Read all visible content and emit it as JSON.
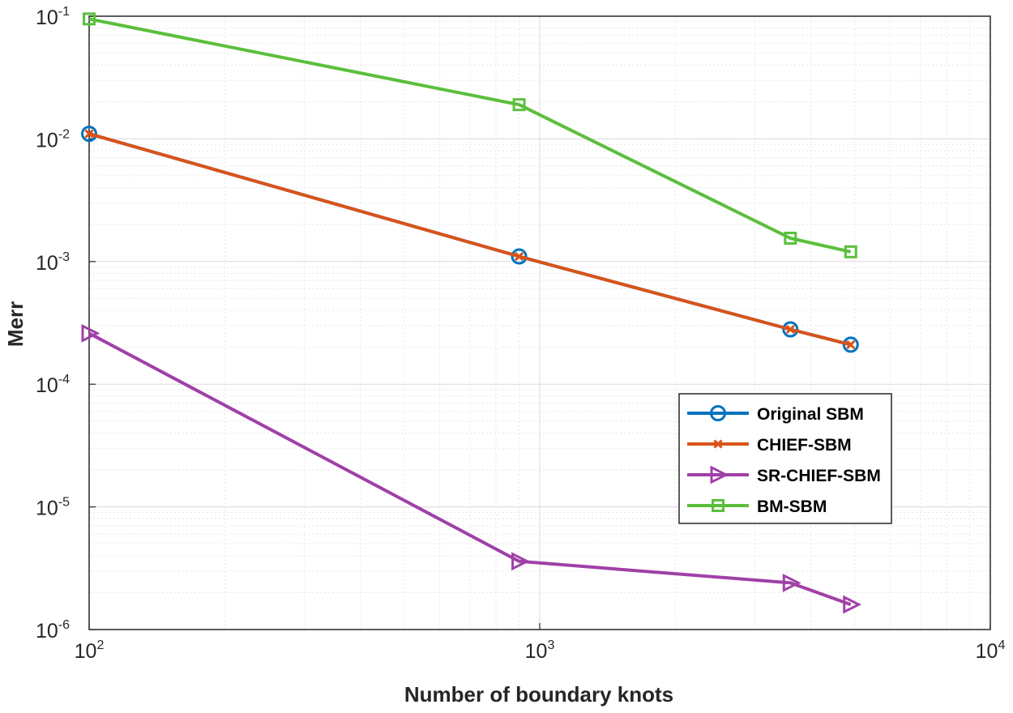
{
  "chart_data": {
    "type": "line",
    "xlabel": "Number of boundary knots",
    "ylabel": "Merr",
    "xscale": "log",
    "yscale": "log",
    "xlim": [
      100,
      10000
    ],
    "ylim": [
      1e-06,
      0.1
    ],
    "grid": true,
    "minor_grid": true,
    "legend_position": "right",
    "x_ticks": [
      {
        "value": 100,
        "base": "10",
        "exp": "2"
      },
      {
        "value": 1000,
        "base": "10",
        "exp": "3"
      },
      {
        "value": 10000,
        "base": "10",
        "exp": "4"
      }
    ],
    "y_ticks": [
      {
        "value": 1e-06,
        "base": "10",
        "exp": "-6"
      },
      {
        "value": 1e-05,
        "base": "10",
        "exp": "-5"
      },
      {
        "value": 0.0001,
        "base": "10",
        "exp": "-4"
      },
      {
        "value": 0.001,
        "base": "10",
        "exp": "-3"
      },
      {
        "value": 0.01,
        "base": "10",
        "exp": "-2"
      },
      {
        "value": 0.1,
        "base": "10",
        "exp": "-1"
      }
    ],
    "series": [
      {
        "name": "Original SBM",
        "color": "#0072BD",
        "marker": "circle",
        "x": [
          100,
          900,
          3600,
          4900
        ],
        "y": [
          0.011,
          0.0011,
          0.00028,
          0.00021
        ]
      },
      {
        "name": "CHIEF-SBM",
        "color": "#D95319",
        "marker": "x",
        "x": [
          100,
          900,
          3600,
          4900
        ],
        "y": [
          0.011,
          0.0011,
          0.00028,
          0.00021
        ]
      },
      {
        "name": "SR-CHIEF-SBM",
        "color": "#A040A8",
        "marker": "triangle-right",
        "x": [
          100,
          900,
          3600,
          4900
        ],
        "y": [
          0.00026,
          3.6e-06,
          2.4e-06,
          1.6e-06
        ]
      },
      {
        "name": "BM-SBM",
        "color": "#5BBF3C",
        "marker": "square",
        "x": [
          100,
          900,
          3600,
          4900
        ],
        "y": [
          0.095,
          0.019,
          0.00155,
          0.0012
        ]
      }
    ]
  }
}
